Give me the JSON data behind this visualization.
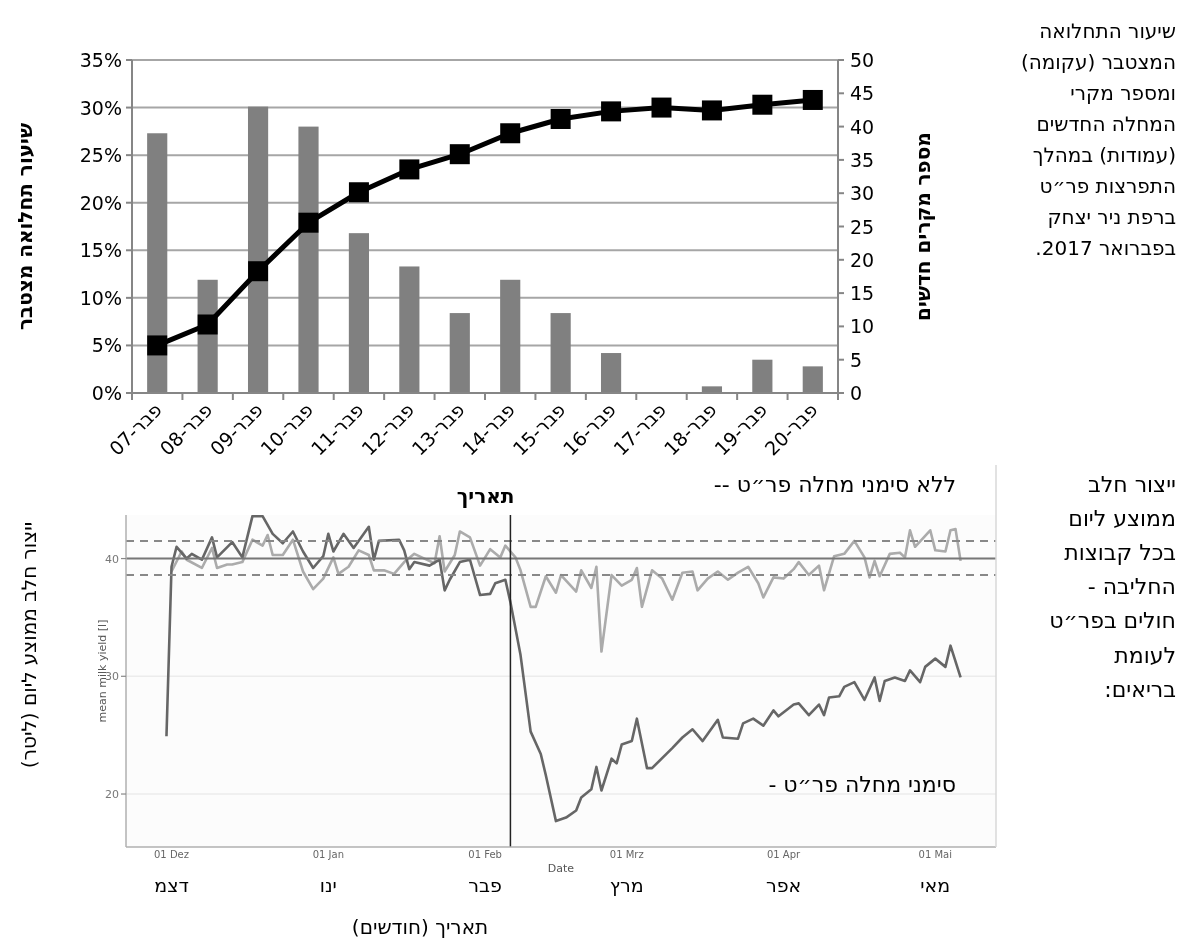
{
  "chart_data": [
    {
      "type": "bar",
      "annotations": [
        "שיעור התחלואה המצטבר (עקומה) ומספר מקרי המחלה החדשים (עמודות) במהלך התפרצות פר״ט ברפת ניר יצחק בפברואר 2017."
      ],
      "ylabel": "שיעור תחלואה מצטבר",
      "y2label": "מספר מקרים חדשים",
      "categories": [
        "פבר-07",
        "פבר-08",
        "פבר-09",
        "פבר-10",
        "פבר-11",
        "פבר-12",
        "פבר-13",
        "פבר-14",
        "פבר-15",
        "פבר-16",
        "פבר-17",
        "פבר-18",
        "פבר-19",
        "פבר-20"
      ],
      "ylim": [
        0,
        35
      ],
      "yticks": [
        {
          "value": 0,
          "label": "0%"
        },
        {
          "value": 5,
          "label": "5%"
        },
        {
          "value": 10,
          "label": "10%"
        },
        {
          "value": 15,
          "label": "15%"
        },
        {
          "value": 20,
          "label": "20%"
        },
        {
          "value": 25,
          "label": "25%"
        },
        {
          "value": 30,
          "label": "30%"
        },
        {
          "value": 35,
          "label": "35%"
        }
      ],
      "y2lim": [
        0,
        50
      ],
      "y2ticks": [
        0,
        5,
        10,
        15,
        20,
        25,
        30,
        35,
        40,
        45,
        50
      ],
      "grid": "y",
      "marker": "square",
      "series": [
        {
          "type": "bar",
          "axis": "y2",
          "color": "#808080",
          "values": [
            39,
            17,
            43,
            40,
            24,
            19,
            12,
            17,
            12,
            6,
            0,
            1,
            5,
            4
          ]
        },
        {
          "type": "line",
          "axis": "y",
          "color": "#000000",
          "values": [
            5.0,
            7.2,
            12.8,
            17.9,
            21.1,
            23.5,
            25.1,
            27.3,
            28.8,
            29.6,
            30.0,
            29.7,
            30.3,
            30.8
          ]
        }
      ]
    },
    {
      "type": "line",
      "xlabel": "Date",
      "ylabel": "mean milk yield [l]",
      "x2label": "תאריך (חודשים)",
      "annotations": [
        "ייצור חלב ממוצע ליום (ליטר)",
        "ייצור חלב ממוצע ליום בכל קבוצות החליבה - חולים בפר״ט לעומת בריאים:",
        "דצמ",
        "ינו",
        "פבר",
        "מרץ",
        "אפר",
        "מאי"
      ],
      "xlim": [
        "2016-11-22",
        "2017-05-13"
      ],
      "xticks": [
        {
          "value": "2016-12-01",
          "label": "01 Dez"
        },
        {
          "value": "2017-01-01",
          "label": "01 Jan"
        },
        {
          "value": "2017-02-01",
          "label": "01 Feb"
        },
        {
          "value": "2017-03-01",
          "label": "01 Mrz"
        },
        {
          "value": "2017-04-01",
          "label": "01 Apr"
        },
        {
          "value": "2017-05-01",
          "label": "01 Mai"
        }
      ],
      "ylim": [
        15.5,
        43.7
      ],
      "yticks": [
        20,
        30,
        40
      ],
      "grid": "y",
      "ref_lines": [
        {
          "axis": "y",
          "value": 40,
          "color": "#777777"
        },
        {
          "axis": "y",
          "value": 41.5,
          "color": "#888888",
          "line_style": "dashed"
        },
        {
          "axis": "y",
          "value": 38.6,
          "color": "#888888",
          "line_style": "dashed"
        },
        {
          "axis": "x",
          "value": "2017-02-06",
          "label": "תאריך",
          "color": "#222222"
        }
      ],
      "series": [
        {
          "name": "ללא סימני מחלה פר״ט --",
          "color": "#ababab",
          "x": [
            "2016-12-01",
            "2016-12-03",
            "2016-12-04",
            "2016-12-07",
            "2016-12-09",
            "2016-12-10",
            "2016-12-12",
            "2016-12-13",
            "2016-12-15",
            "2016-12-17",
            "2016-12-19",
            "2016-12-20",
            "2016-12-21",
            "2016-12-23",
            "2016-12-25",
            "2016-12-27",
            "2016-12-29",
            "2016-12-31",
            "2017-01-02",
            "2017-01-03",
            "2017-01-05",
            "2017-01-07",
            "2017-01-09",
            "2017-01-10",
            "2017-01-12",
            "2017-01-14",
            "2017-01-16",
            "2017-01-18",
            "2017-01-20",
            "2017-01-22",
            "2017-01-23",
            "2017-01-24",
            "2017-01-26",
            "2017-01-27",
            "2017-01-29",
            "2017-01-31",
            "2017-02-02",
            "2017-02-04",
            "2017-02-05",
            "2017-02-07",
            "2017-02-08",
            "2017-02-10",
            "2017-02-11",
            "2017-02-13",
            "2017-02-15",
            "2017-02-16",
            "2017-02-19",
            "2017-02-20",
            "2017-02-22",
            "2017-02-23",
            "2017-02-24",
            "2017-02-26",
            "2017-02-28",
            "2017-03-02",
            "2017-03-03",
            "2017-03-04",
            "2017-03-06",
            "2017-03-08",
            "2017-03-10",
            "2017-03-12",
            "2017-03-14",
            "2017-03-15",
            "2017-03-17",
            "2017-03-19",
            "2017-03-21",
            "2017-03-23",
            "2017-03-25",
            "2017-03-27",
            "2017-03-28",
            "2017-03-30",
            "2017-04-01",
            "2017-04-03",
            "2017-04-04",
            "2017-04-06",
            "2017-04-08",
            "2017-04-09",
            "2017-04-11",
            "2017-04-13",
            "2017-04-15",
            "2017-04-17",
            "2017-04-18",
            "2017-04-19",
            "2017-04-20",
            "2017-04-22",
            "2017-04-24",
            "2017-04-25",
            "2017-04-26",
            "2017-04-27",
            "2017-04-30",
            "2017-05-01",
            "2017-05-03",
            "2017-05-04",
            "2017-05-05",
            "2017-05-06"
          ],
          "values": [
            38.9,
            40.6,
            39.9,
            39.2,
            40.9,
            39.2,
            39.5,
            39.5,
            39.7,
            41.6,
            41.1,
            42.0,
            40.3,
            40.3,
            41.6,
            38.9,
            37.4,
            38.3,
            40.1,
            38.7,
            39.3,
            40.7,
            40.3,
            39.0,
            39.0,
            38.7,
            39.7,
            40.4,
            40.0,
            39.6,
            41.9,
            38.9,
            40.3,
            42.3,
            41.8,
            39.4,
            40.8,
            40.1,
            41.1,
            40.1,
            39.0,
            35.9,
            35.9,
            38.5,
            37.1,
            38.6,
            37.2,
            39.0,
            37.5,
            39.3,
            32.1,
            38.6,
            37.7,
            38.2,
            39.2,
            35.9,
            39.0,
            38.3,
            36.5,
            38.8,
            38.9,
            37.3,
            38.3,
            38.9,
            38.2,
            38.8,
            39.3,
            37.9,
            36.7,
            38.4,
            38.3,
            39.1,
            39.7,
            38.6,
            39.4,
            37.3,
            40.2,
            40.4,
            41.5,
            40.1,
            38.4,
            39.8,
            38.5,
            40.4,
            40.5,
            40.1,
            42.4,
            41.0,
            42.4,
            40.7,
            40.6,
            42.4,
            42.5,
            39.8
          ]
        },
        {
          "name": "סימני מחלה פר״ט -",
          "color": "#666666",
          "x": [
            "2016-11-30",
            "2016-12-01",
            "2016-12-02",
            "2016-12-04",
            "2016-12-05",
            "2016-12-07",
            "2016-12-09",
            "2016-12-10",
            "2016-12-13",
            "2016-12-15",
            "2016-12-17",
            "2016-12-19",
            "2016-12-21",
            "2016-12-23",
            "2016-12-25",
            "2016-12-27",
            "2016-12-29",
            "2016-12-31",
            "2017-01-01",
            "2017-01-02",
            "2017-01-04",
            "2017-01-06",
            "2017-01-09",
            "2017-01-10",
            "2017-01-11",
            "2017-01-15",
            "2017-01-16",
            "2017-01-17",
            "2017-01-18",
            "2017-01-21",
            "2017-01-23",
            "2017-01-24",
            "2017-01-25",
            "2017-01-27",
            "2017-01-29",
            "2017-01-31",
            "2017-02-02",
            "2017-02-03",
            "2017-02-05",
            "2017-02-06",
            "2017-02-08",
            "2017-02-10",
            "2017-02-12",
            "2017-02-13",
            "2017-02-15",
            "2017-02-17",
            "2017-02-19",
            "2017-02-20",
            "2017-02-22",
            "2017-02-23",
            "2017-02-24",
            "2017-02-26",
            "2017-02-27",
            "2017-02-28",
            "2017-03-02",
            "2017-03-03",
            "2017-03-05",
            "2017-03-06",
            "2017-03-10",
            "2017-03-12",
            "2017-03-14",
            "2017-03-16",
            "2017-03-19",
            "2017-03-20",
            "2017-03-23",
            "2017-03-24",
            "2017-03-26",
            "2017-03-28",
            "2017-03-30",
            "2017-03-31",
            "2017-04-03",
            "2017-04-04",
            "2017-04-06",
            "2017-04-08",
            "2017-04-09",
            "2017-04-10",
            "2017-04-12",
            "2017-04-13",
            "2017-04-15",
            "2017-04-17",
            "2017-04-19",
            "2017-04-20",
            "2017-04-21",
            "2017-04-23",
            "2017-04-25",
            "2017-04-26",
            "2017-04-28",
            "2017-04-29",
            "2017-05-01",
            "2017-05-03",
            "2017-05-04",
            "2017-05-06"
          ],
          "values": [
            24.9,
            39.3,
            41.0,
            40.0,
            40.4,
            39.9,
            41.8,
            40.1,
            41.4,
            40.1,
            43.6,
            43.6,
            42.1,
            41.3,
            42.3,
            40.6,
            39.2,
            40.2,
            42.1,
            40.6,
            42.1,
            40.9,
            42.7,
            39.9,
            41.5,
            41.6,
            40.7,
            39.1,
            39.7,
            39.4,
            39.9,
            37.3,
            38.2,
            39.7,
            39.9,
            36.9,
            37.0,
            37.9,
            38.2,
            36.3,
            31.8,
            25.3,
            23.4,
            21.6,
            17.7,
            18.0,
            18.6,
            19.7,
            20.4,
            22.3,
            20.3,
            23.0,
            22.6,
            24.2,
            24.5,
            26.4,
            22.2,
            22.2,
            23.9,
            24.8,
            25.5,
            24.5,
            26.3,
            24.8,
            24.7,
            26.0,
            26.4,
            25.8,
            27.1,
            26.6,
            27.6,
            27.7,
            26.7,
            27.6,
            26.7,
            28.2,
            28.3,
            29.1,
            29.5,
            28.0,
            29.9,
            27.9,
            29.6,
            29.9,
            29.6,
            30.5,
            29.5,
            30.8,
            31.5,
            30.8,
            32.6,
            29.9
          ]
        }
      ]
    }
  ]
}
